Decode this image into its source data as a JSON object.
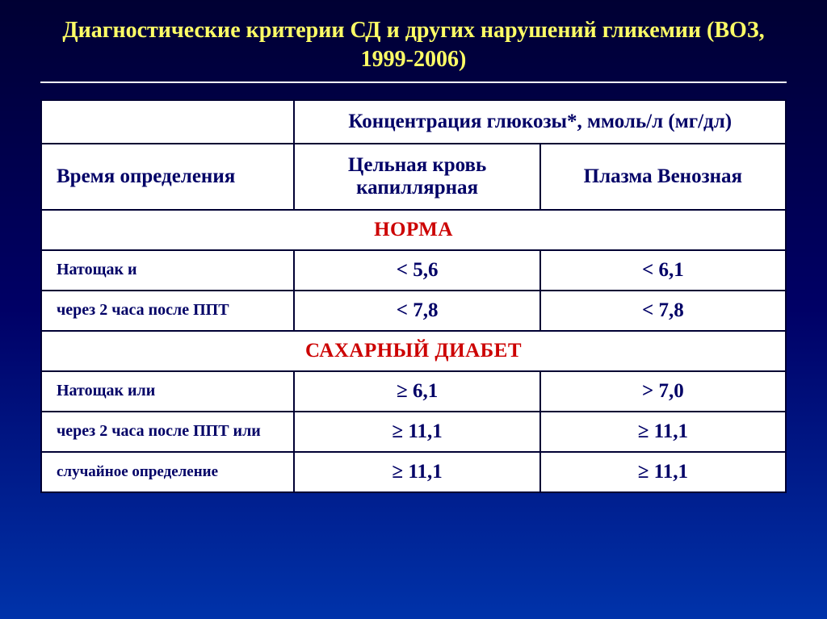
{
  "title": "Диагностические критерии СД и других нарушений гликемии (ВОЗ, 1999-2006)",
  "table": {
    "header": {
      "glucose_concentration": "Концентрация глюкозы*, ммоль/л (мг/дл)",
      "time_determination": "Время определения",
      "capillary_blood": "Цельная кровь капиллярная",
      "venous_plasma": "Плазма Венозная"
    },
    "sections": {
      "norm": {
        "title": "НОРМА",
        "rows": [
          {
            "label": "Натощак и",
            "capillary": "< 5,6",
            "venous": "< 6,1"
          },
          {
            "label": "через 2 часа после ППТ",
            "capillary": "< 7,8",
            "venous": "< 7,8"
          }
        ]
      },
      "diabetes": {
        "title": "САХАРНЫЙ ДИАБЕТ",
        "rows": [
          {
            "label": "Натощак или",
            "capillary": "≥ 6,1",
            "venous": "> 7,0"
          },
          {
            "label": "через 2 часа после ППТ или",
            "capillary": "≥ 11,1",
            "venous": "≥ 11,1"
          },
          {
            "label": "случайное определение",
            "capillary": "≥ 11,1",
            "venous": "≥ 11,1"
          }
        ]
      }
    }
  },
  "styles": {
    "background_gradient": [
      "#000033",
      "#000066",
      "#0033aa"
    ],
    "title_color": "#ffff66",
    "table_bg": "#ffffff",
    "border_color": "#000033",
    "text_color": "#000066",
    "section_color": "#cc0000",
    "title_fontsize": 28,
    "header_fontsize": 25,
    "value_fontsize": 25,
    "label_fontsize": 20
  }
}
